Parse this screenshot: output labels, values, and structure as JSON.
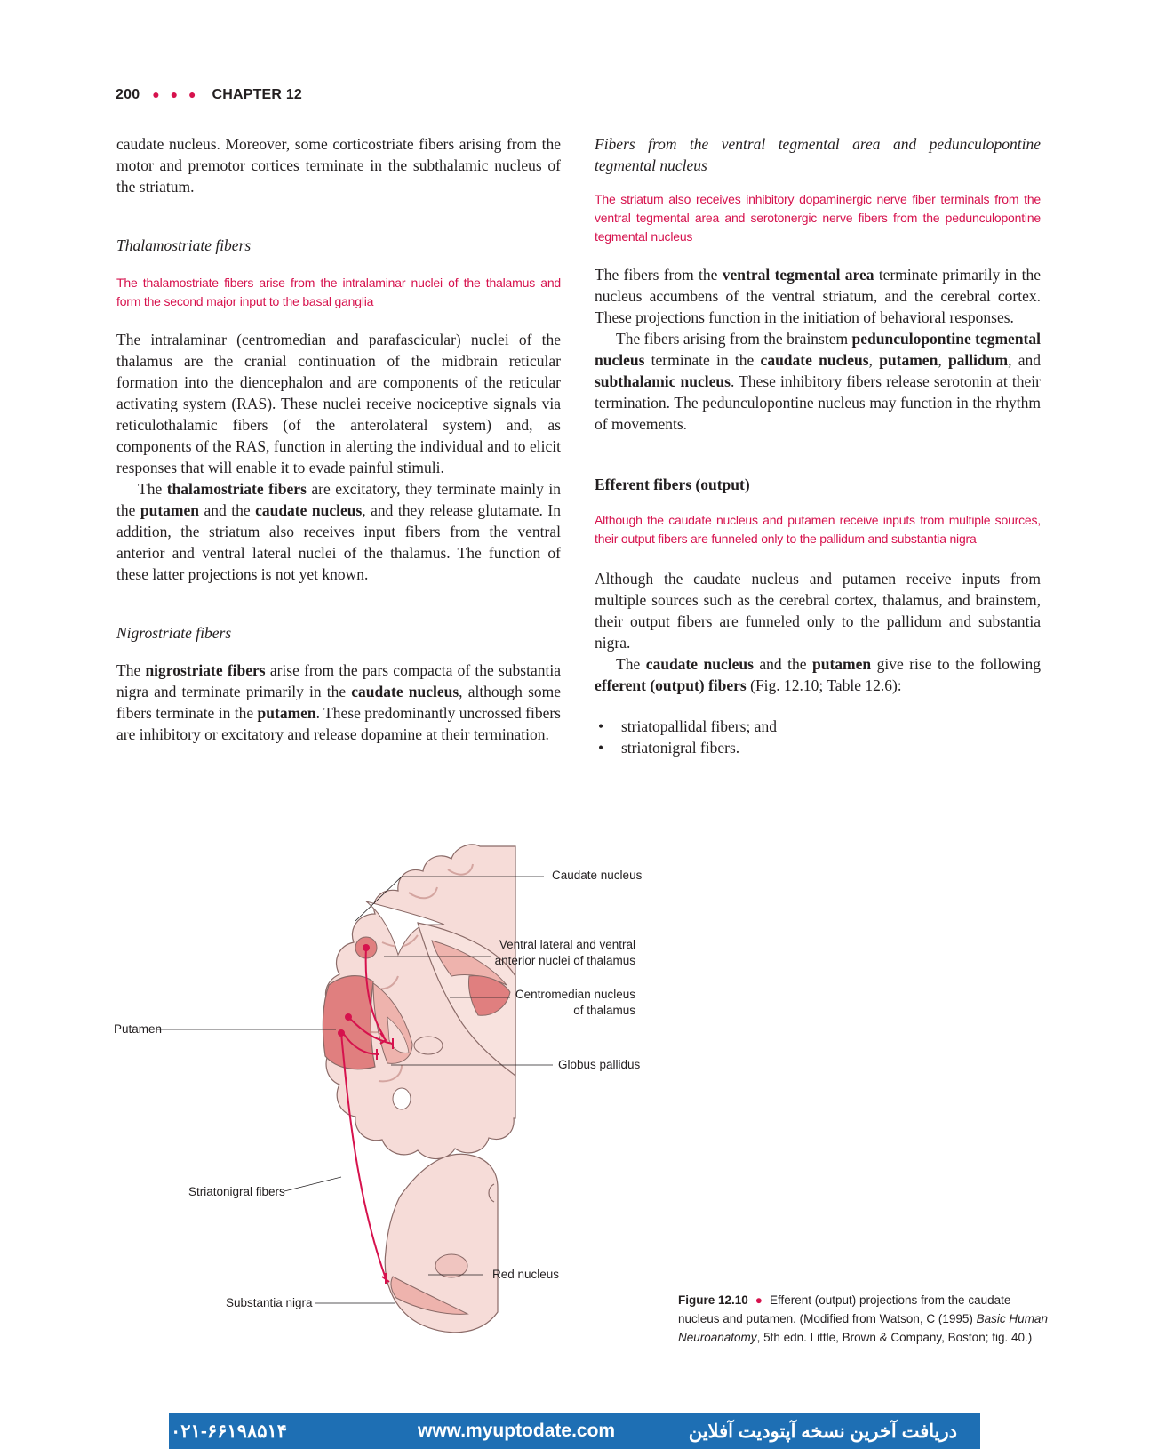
{
  "header": {
    "page_number": "200",
    "dots": "● ● ●",
    "chapter": "CHAPTER 12"
  },
  "left_column": {
    "p_intro": "caudate nucleus. Moreover, some corticostriate fibers arising from the motor and premotor cortices terminate in the subthalamic nucleus of the striatum.",
    "thalamo_heading": "Thalamostriate fibers",
    "thalamo_key": "The thalamostriate fibers arise from the intralaminar nuclei of the thalamus and form the second major input to the basal ganglia",
    "thalamo_p1": "The intralaminar (centromedian and parafascicular) nuclei of the thalamus are the cranial continuation of the midbrain reticular formation into the diencephalon and are components of the reticular activating system (RAS). These nuclei receive nociceptive signals via reticulothalamic fibers (of the anterolateral system) and, as components of the RAS, function in alerting the individual and to elicit responses that will enable it to evade painful stimuli.",
    "thalamo_p2": {
      "t1": "The ",
      "b1": "thalamostriate fibers",
      "t2": " are excitatory, they terminate mainly in the ",
      "b2": "putamen",
      "t3": " and the ",
      "b3": "caudate nucleus",
      "t4": ", and they release glutamate. In addition, the striatum also receives input fibers from the ventral anterior and ventral lateral nuclei of the thalamus. The function of these latter projections is not yet known."
    },
    "nigro_heading": "Nigrostriate fibers",
    "nigro_p": {
      "t1": "The ",
      "b1": "nigrostriate fibers",
      "t2": " arise from the pars compacta of the substantia nigra and terminate primarily in the ",
      "b2": "caudate nucleus",
      "t3": ", although some fibers terminate in the ",
      "b3": "putamen",
      "t4": ". These predominantly uncrossed fibers are inhibitory or excitatory and release dopamine at their termination."
    }
  },
  "right_column": {
    "vta_heading": "Fibers from the ventral tegmental area and pedunculopontine tegmental nucleus",
    "vta_key": "The striatum also receives inhibitory dopaminergic nerve fiber terminals from the ventral tegmental area and serotonergic nerve fibers from the pedunculopontine tegmental nucleus",
    "vta_p1": {
      "t1": "The fibers from the ",
      "b1": "ventral tegmental area",
      "t2": " terminate primarily in the nucleus accumbens of the ventral striatum, and the cerebral cortex. These projections function in the initiation of behavioral responses."
    },
    "vta_p2": {
      "t1": "The fibers arising from the brainstem ",
      "b1": "pedunculopontine tegmental nucleus",
      "t2": " terminate in the ",
      "b2": "caudate nucleus",
      "t3": ", ",
      "b3": "putamen",
      "t4": ", ",
      "b4": "pallidum",
      "t5": ", and ",
      "b5": "subthalamic nucleus",
      "t6": ". These inhibitory fibers release serotonin at their termination. The pedunculopontine nucleus may function in the rhythm of movements."
    },
    "eff_heading": "Efferent fibers (output)",
    "eff_key": "Although the caudate nucleus and putamen receive inputs from multiple sources, their output fibers are funneled only to the pallidum and substantia nigra",
    "eff_p1": "Although the caudate nucleus and putamen receive inputs from multiple sources such as the cerebral cortex, thalamus, and brainstem, their output fibers are funneled only to the pallidum and substantia nigra.",
    "eff_p2": {
      "t1": "The ",
      "b1": "caudate nucleus",
      "t2": " and the ",
      "b2": "putamen",
      "t3": " give rise to the following ",
      "b3": "efferent (output) fibers",
      "t4": " (Fig. 12.10; Table 12.6):"
    },
    "bullets": [
      "striatopallidal fibers; and",
      "striatonigral fibers."
    ]
  },
  "figure": {
    "labels": {
      "caudate": "Caudate nucleus",
      "ventral_1": "Ventral lateral and ventral",
      "ventral_2": "anterior nuclei of thalamus",
      "centro_1": "Centromedian nucleus",
      "centro_2": "of thalamus",
      "putamen": "Putamen",
      "globus": "Globus pallidus",
      "striatonigral": "Striatonigral fibers",
      "red_nucleus": "Red nucleus",
      "substantia": "Substantia nigra"
    },
    "caption": {
      "number": "Figure 12.10",
      "dot": "●",
      "t1": "Efferent (output) projections from the caudate nucleus and putamen. (Modified from Watson, C (1995) ",
      "italic": "Basic Human Neuroanatomy",
      "t2": ", 5th edn. Little, Brown & Company, Boston; fig. 40.)"
    }
  },
  "banner": {
    "phone": "۰۲۱-۶۶۱۹۸۵۱۴",
    "url": "www.myuptodate.com",
    "persian": "دریافت آخرین نسخه آپتودیت آفلاین",
    "bg_color": "#1e6fb4"
  },
  "colors": {
    "accent": "#d6124d",
    "tissue_light": "#f6dcd8",
    "tissue_mid": "#eeb3ad",
    "tissue_dark": "#e07f7f"
  }
}
